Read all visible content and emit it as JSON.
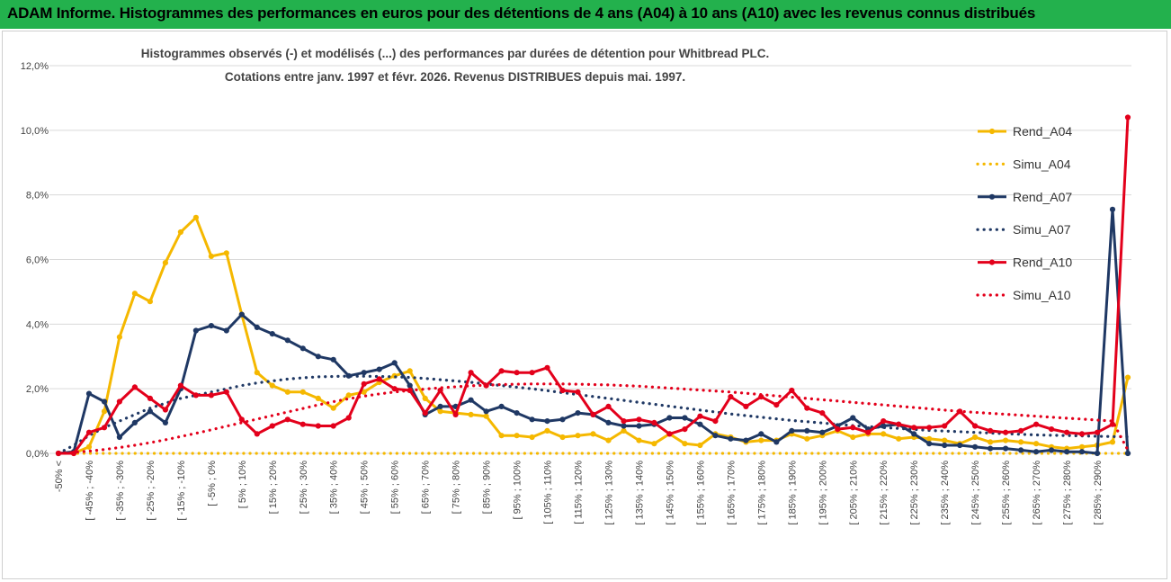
{
  "header": {
    "title": "ADAM Informe. Histogrammes des performances en euros pour des détentions de 4 ans (A04) à 10 ans (A10) avec les revenus connus distribués"
  },
  "chart_data": {
    "type": "line",
    "title_line1": "Histogrammes observés (-) et modélisés (...) des performances par durées de détention pour Whitbread PLC.",
    "title_line2": "Cotations entre janv. 1997 et févr. 2026. Revenus DISTRIBUES depuis mai. 1997.",
    "ylim": [
      0,
      12
    ],
    "yticks": [
      0,
      2,
      4,
      6,
      8,
      10,
      12
    ],
    "ytick_labels": [
      "0,0%",
      "2,0%",
      "4,0%",
      "6,0%",
      "8,0%",
      "10,0%",
      "12,0%"
    ],
    "xtick_labels": [
      "-50% <",
      "[ -45% ; -40%",
      "[ -35% ; -30%",
      "[ -25% ; -20%",
      "[ -15% ; -10%",
      "[ -5% ; 0%",
      "[ 5% ; 10%",
      "[ 15% ; 20%",
      "[ 25% ; 30%",
      "[ 35% ; 40%",
      "[ 45% ; 50%",
      "[ 55% ; 60%",
      "[ 65% ; 70%",
      "[ 75% ; 80%",
      "[ 85% ; 90%",
      "[ 95% ; 100%",
      "[ 105% ; 110%",
      "[ 115% ; 120%",
      "[ 125% ; 130%",
      "[ 135% ; 140%",
      "[ 145% ; 150%",
      "[ 155% ; 160%",
      "[ 165% ; 170%",
      "[ 175% ; 180%",
      "[ 185% ; 190%",
      "[ 195% ; 200%",
      "[ 205% ; 210%",
      "[ 215% ; 220%",
      "[ 225% ; 230%",
      "[ 235% ; 240%",
      "[ 245% ; 250%",
      "[ 255% ; 260%",
      "[ 265% ; 270%",
      "[ 275% ; 280%",
      "[ 285% ; 290%"
    ],
    "n_points": 71,
    "series": [
      {
        "name": "Rend_A04",
        "style": "solid",
        "color": "#f5b800",
        "values": [
          0.0,
          0.0,
          0.2,
          1.3,
          3.6,
          4.95,
          4.7,
          5.9,
          6.85,
          7.3,
          6.1,
          6.2,
          4.3,
          2.5,
          2.1,
          1.9,
          1.9,
          1.7,
          1.4,
          1.8,
          1.9,
          2.2,
          2.4,
          2.55,
          1.7,
          1.3,
          1.25,
          1.2,
          1.15,
          0.55,
          0.55,
          0.5,
          0.7,
          0.5,
          0.55,
          0.6,
          0.4,
          0.7,
          0.4,
          0.3,
          0.6,
          0.3,
          0.25,
          0.6,
          0.5,
          0.35,
          0.4,
          0.4,
          0.6,
          0.45,
          0.55,
          0.7,
          0.5,
          0.6,
          0.6,
          0.45,
          0.5,
          0.45,
          0.4,
          0.3,
          0.5,
          0.35,
          0.4,
          0.35,
          0.3,
          0.2,
          0.15,
          0.2,
          0.25,
          0.35,
          2.35
        ]
      },
      {
        "name": "Simu_A04",
        "style": "dotted",
        "color": "#f5b800",
        "values": [
          0.0,
          0.0,
          0.0,
          0.0,
          0.0,
          0.0,
          0.0,
          0.0,
          0.0,
          0.0,
          0.0,
          0.0,
          0.0,
          0.0,
          0.0,
          0.0,
          0.0,
          0.0,
          0.0,
          0.0,
          0.0,
          0.0,
          0.0,
          0.0,
          0.0,
          0.0,
          0.0,
          0.0,
          0.0,
          0.0,
          0.0,
          0.0,
          0.0,
          0.0,
          0.0,
          0.0,
          0.0,
          0.0,
          0.0,
          0.0,
          0.0,
          0.0,
          0.0,
          0.0,
          0.0,
          0.0,
          0.0,
          0.0,
          0.0,
          0.0,
          0.0,
          0.0,
          0.0,
          0.0,
          0.0,
          0.0,
          0.0,
          0.0,
          0.0,
          0.0,
          0.0,
          0.0,
          0.0,
          0.0,
          0.0,
          0.0,
          0.0,
          0.0,
          0.0,
          0.0,
          0.0
        ]
      },
      {
        "name": "Rend_A07",
        "style": "solid",
        "color": "#1f3864",
        "values": [
          0.0,
          0.05,
          1.85,
          1.6,
          0.5,
          0.95,
          1.3,
          0.95,
          2.0,
          3.8,
          3.95,
          3.8,
          4.3,
          3.9,
          3.7,
          3.5,
          3.25,
          3.0,
          2.9,
          2.4,
          2.5,
          2.6,
          2.8,
          2.1,
          1.2,
          1.45,
          1.45,
          1.65,
          1.3,
          1.45,
          1.25,
          1.05,
          1.0,
          1.05,
          1.25,
          1.2,
          0.95,
          0.85,
          0.85,
          0.9,
          1.1,
          1.1,
          0.9,
          0.55,
          0.45,
          0.4,
          0.6,
          0.35,
          0.7,
          0.7,
          0.65,
          0.85,
          1.1,
          0.75,
          0.85,
          0.9,
          0.6,
          0.3,
          0.25,
          0.25,
          0.2,
          0.15,
          0.15,
          0.1,
          0.05,
          0.1,
          0.05,
          0.05,
          0.0,
          7.55,
          0.0
        ]
      },
      {
        "name": "Simu_A07",
        "style": "dotted",
        "color": "#1f3864",
        "values": [
          0.0,
          0.25,
          0.55,
          0.8,
          1.0,
          1.2,
          1.4,
          1.55,
          1.7,
          1.8,
          1.9,
          2.0,
          2.1,
          2.18,
          2.24,
          2.3,
          2.34,
          2.37,
          2.38,
          2.39,
          2.39,
          2.38,
          2.37,
          2.35,
          2.32,
          2.28,
          2.24,
          2.2,
          2.15,
          2.1,
          2.05,
          2.0,
          1.94,
          1.88,
          1.82,
          1.76,
          1.7,
          1.64,
          1.58,
          1.52,
          1.46,
          1.4,
          1.34,
          1.28,
          1.22,
          1.17,
          1.12,
          1.07,
          1.02,
          0.98,
          0.94,
          0.9,
          0.86,
          0.83,
          0.8,
          0.77,
          0.74,
          0.71,
          0.69,
          0.67,
          0.65,
          0.63,
          0.61,
          0.59,
          0.57,
          0.56,
          0.55,
          0.54,
          0.53,
          0.52,
          0.51
        ]
      },
      {
        "name": "Rend_A10",
        "style": "solid",
        "color": "#e3001b",
        "values": [
          0.0,
          0.0,
          0.65,
          0.8,
          1.6,
          2.05,
          1.7,
          1.35,
          2.1,
          1.8,
          1.8,
          1.9,
          1.05,
          0.6,
          0.85,
          1.05,
          0.9,
          0.85,
          0.85,
          1.1,
          2.15,
          2.3,
          2.0,
          1.95,
          1.25,
          1.95,
          1.2,
          2.5,
          2.1,
          2.55,
          2.5,
          2.5,
          2.65,
          1.95,
          1.9,
          1.2,
          1.45,
          1.0,
          1.05,
          0.95,
          0.6,
          0.75,
          1.15,
          1.0,
          1.75,
          1.45,
          1.75,
          1.5,
          1.95,
          1.4,
          1.25,
          0.75,
          0.8,
          0.65,
          1.0,
          0.9,
          0.8,
          0.8,
          0.85,
          1.3,
          0.85,
          0.7,
          0.65,
          0.7,
          0.9,
          0.75,
          0.65,
          0.6,
          0.65,
          0.9,
          10.4
        ]
      },
      {
        "name": "Simu_A10",
        "style": "dotted",
        "color": "#e3001b",
        "values": [
          0.0,
          0.03,
          0.07,
          0.12,
          0.18,
          0.25,
          0.33,
          0.42,
          0.52,
          0.62,
          0.73,
          0.84,
          0.95,
          1.06,
          1.17,
          1.28,
          1.39,
          1.5,
          1.6,
          1.69,
          1.77,
          1.84,
          1.9,
          1.95,
          1.99,
          2.03,
          2.06,
          2.09,
          2.11,
          2.13,
          2.14,
          2.15,
          2.15,
          2.15,
          2.14,
          2.13,
          2.12,
          2.1,
          2.08,
          2.05,
          2.02,
          1.99,
          1.96,
          1.93,
          1.9,
          1.86,
          1.82,
          1.78,
          1.74,
          1.7,
          1.66,
          1.62,
          1.58,
          1.54,
          1.5,
          1.46,
          1.42,
          1.38,
          1.34,
          1.3,
          1.27,
          1.24,
          1.21,
          1.18,
          1.15,
          1.12,
          1.09,
          1.06,
          1.03,
          1.0,
          0.1
        ]
      }
    ],
    "legend_position": "right"
  }
}
